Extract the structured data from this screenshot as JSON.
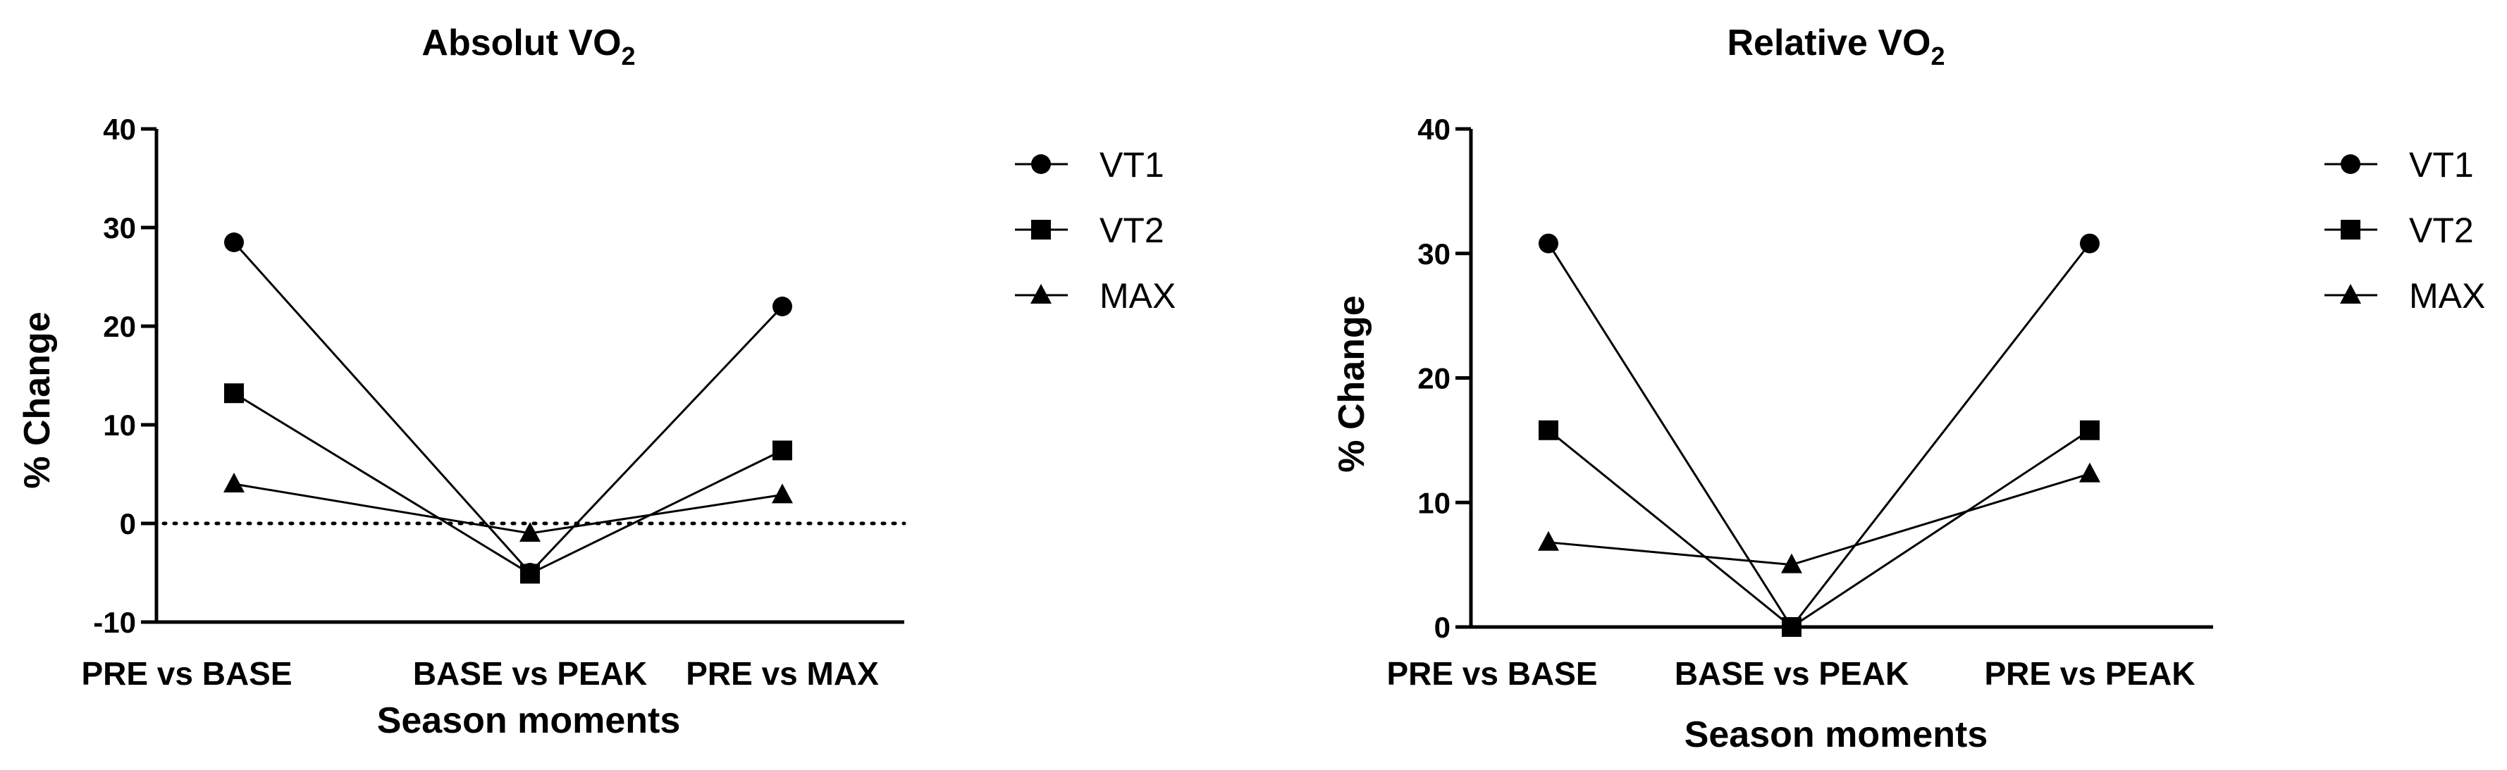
{
  "chart_data": [
    {
      "type": "line",
      "title": "Absolut VO",
      "title_subscript": "2",
      "xlabel": "Season moments",
      "ylabel": "% Change",
      "categories": [
        "PRE vs BASE",
        "BASE vs PEAK",
        "PRE vs MAX"
      ],
      "ylim": [
        -10,
        40
      ],
      "yticks": [
        "-10",
        "0",
        "10",
        "20",
        "30",
        "40"
      ],
      "reference_line": {
        "y": 0,
        "style": "dotted"
      },
      "legend_position": "right",
      "series": [
        {
          "name": "VT1",
          "marker": "circle",
          "values": [
            28.5,
            -5.0,
            22.0
          ]
        },
        {
          "name": "VT2",
          "marker": "square",
          "values": [
            13.2,
            -5.1,
            7.4
          ]
        },
        {
          "name": "MAX",
          "marker": "triangle",
          "values": [
            4.0,
            -1.0,
            2.9
          ]
        }
      ]
    },
    {
      "type": "line",
      "title": "Relative VO",
      "title_subscript": "2",
      "xlabel": "Season moments",
      "ylabel": "% Change",
      "categories": [
        "PRE vs BASE",
        "BASE vs PEAK",
        "PRE vs PEAK"
      ],
      "ylim": [
        0,
        40
      ],
      "yticks": [
        "0",
        "10",
        "20",
        "30",
        "40"
      ],
      "legend_position": "right",
      "series": [
        {
          "name": "VT1",
          "marker": "circle",
          "values": [
            30.8,
            0.0,
            30.8
          ]
        },
        {
          "name": "VT2",
          "marker": "square",
          "values": [
            15.8,
            0.0,
            15.8
          ]
        },
        {
          "name": "MAX",
          "marker": "triangle",
          "values": [
            6.8,
            5.0,
            12.3
          ]
        }
      ]
    }
  ]
}
